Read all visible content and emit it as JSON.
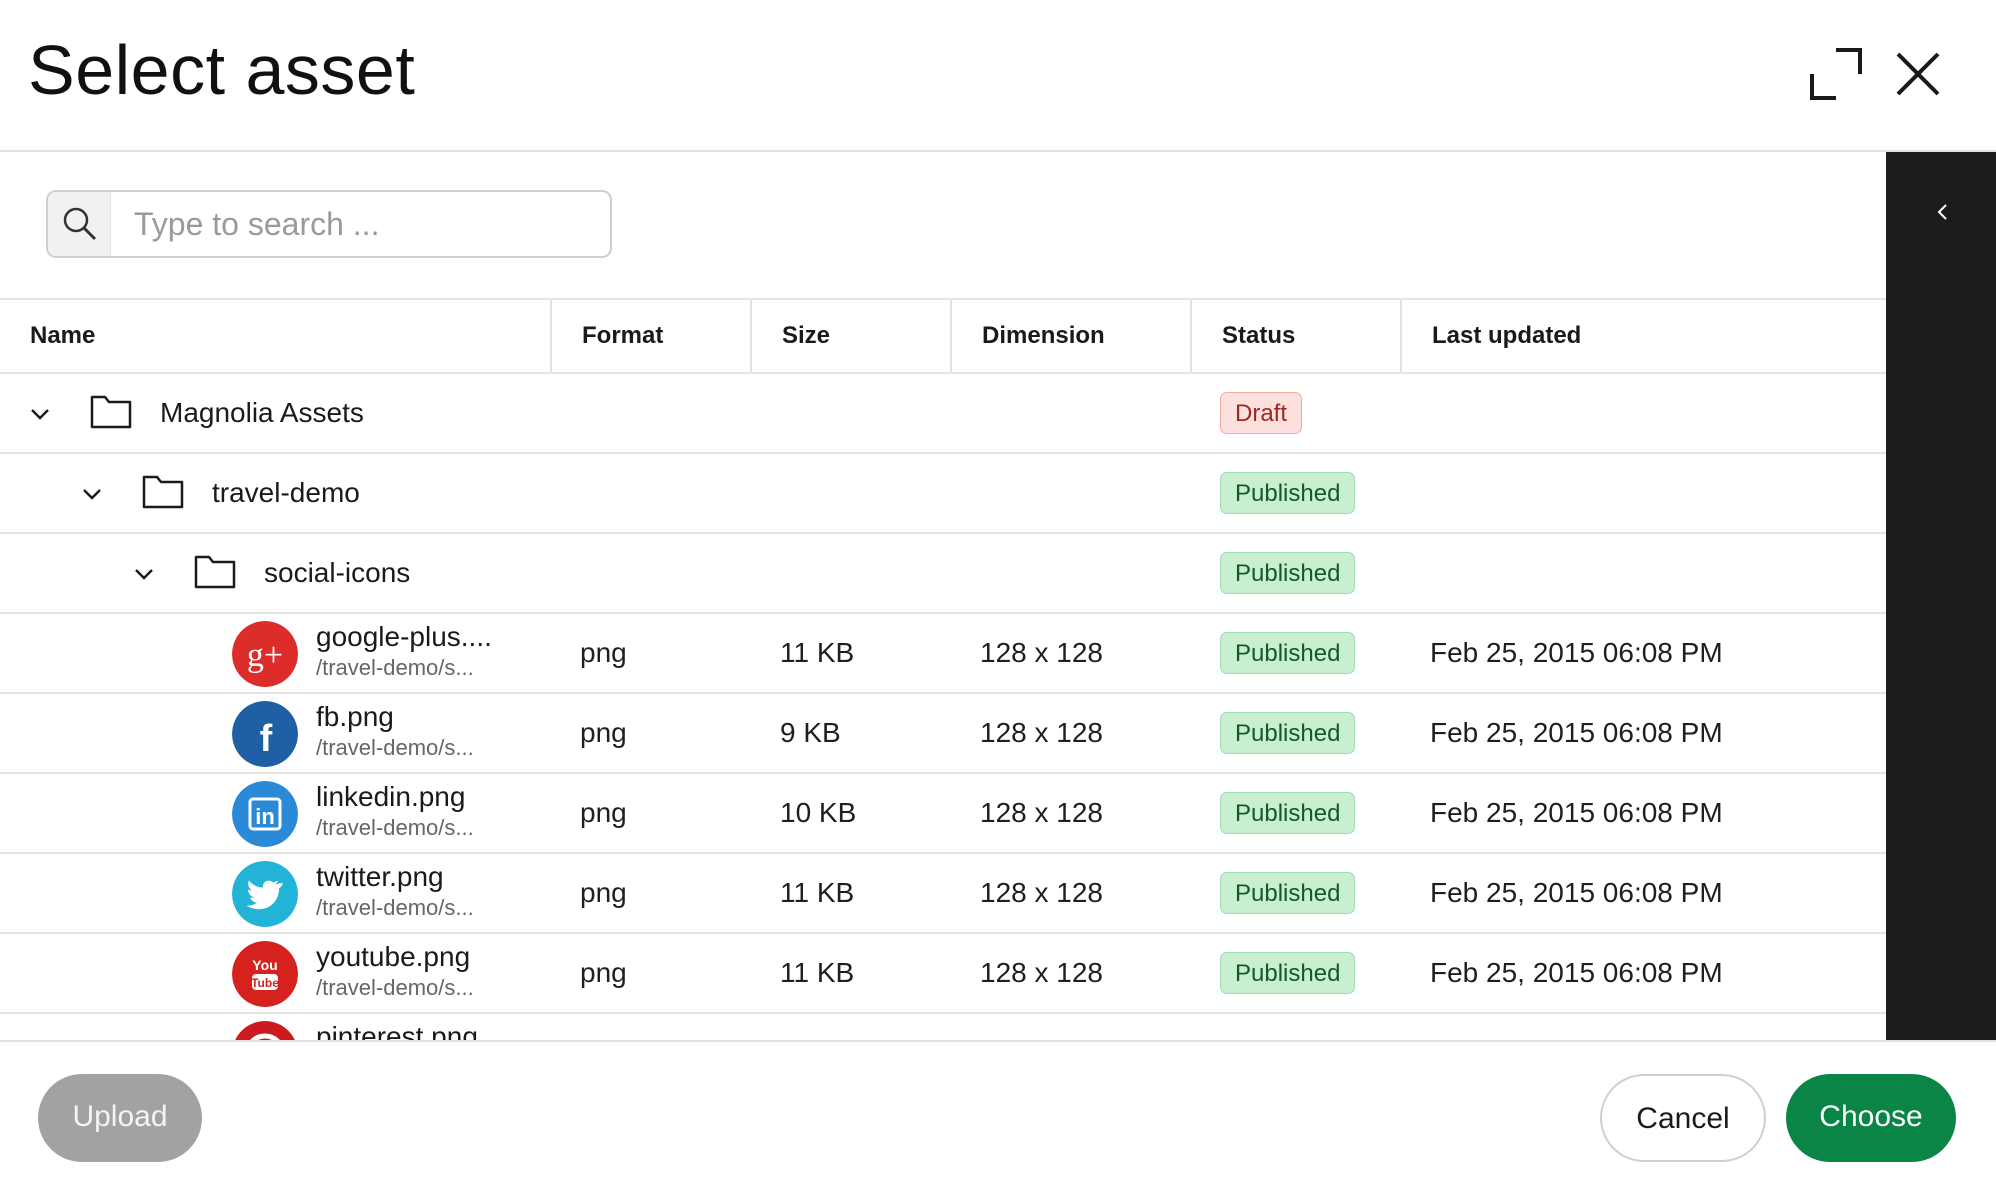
{
  "dialog": {
    "title": "Select asset",
    "expand_icon": "expand-icon",
    "close_icon": "close-icon"
  },
  "search": {
    "placeholder": "Type to search ...",
    "value": "",
    "icon": "search-icon"
  },
  "table": {
    "columns": [
      "Name",
      "Format",
      "Size",
      "Dimension",
      "Status",
      "Last updated"
    ],
    "folders": [
      {
        "name": "Magnolia Assets",
        "status": "Draft",
        "expanded": true
      },
      {
        "name": "travel-demo",
        "status": "Published",
        "expanded": true
      },
      {
        "name": "social-icons",
        "status": "Published",
        "expanded": true
      }
    ],
    "files": [
      {
        "name": "google-plus....",
        "path": "/travel-demo/s...",
        "format": "png",
        "size": "11 KB",
        "dimension": "128 x 128",
        "status": "Published",
        "updated": "Feb 25, 2015 06:08 PM",
        "icon": "google-plus-icon",
        "color": "#dc2d2a"
      },
      {
        "name": "fb.png",
        "path": "/travel-demo/s...",
        "format": "png",
        "size": "9 KB",
        "dimension": "128 x 128",
        "status": "Published",
        "updated": "Feb 25, 2015 06:08 PM",
        "icon": "facebook-icon",
        "color": "#1e5fa6"
      },
      {
        "name": "linkedin.png",
        "path": "/travel-demo/s...",
        "format": "png",
        "size": "10 KB",
        "dimension": "128 x 128",
        "status": "Published",
        "updated": "Feb 25, 2015 06:08 PM",
        "icon": "linkedin-icon",
        "color": "#2a8ad8"
      },
      {
        "name": "twitter.png",
        "path": "/travel-demo/s...",
        "format": "png",
        "size": "11 KB",
        "dimension": "128 x 128",
        "status": "Published",
        "updated": "Feb 25, 2015 06:08 PM",
        "icon": "twitter-icon",
        "color": "#22b3d6"
      },
      {
        "name": "youtube.png",
        "path": "/travel-demo/s...",
        "format": "png",
        "size": "11 KB",
        "dimension": "128 x 128",
        "status": "Published",
        "updated": "Feb 25, 2015 06:08 PM",
        "icon": "youtube-icon",
        "color": "#d6221f"
      },
      {
        "name": "pinterest.png",
        "icon": "pinterest-icon",
        "color": "#cc1b1f"
      }
    ]
  },
  "footer": {
    "upload_label": "Upload",
    "cancel_label": "Cancel",
    "choose_label": "Choose"
  },
  "side_panel": {
    "toggle_icon": "chevron-left-icon"
  },
  "colors": {
    "primary": "#0a8545",
    "published_bg": "#c8efd0",
    "draft_bg": "#fde1df",
    "side_panel": "#1c1c1c"
  }
}
